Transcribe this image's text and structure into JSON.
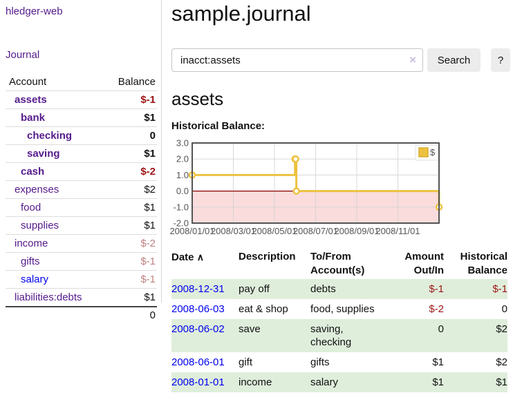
{
  "app": {
    "title": "hledger-web",
    "nav_journal": "Journal"
  },
  "colors": {
    "link_visited_purple": "#551A8B",
    "link_unvisited_blue": "#0000EE",
    "negative_strong_red": "#9D1414",
    "negative_soft_red": "#C08080",
    "row_shade_green": "#dfeedb",
    "series_yellow": "#EDC240",
    "zero_line_dark_red": "#8B0000",
    "negative_region_pink": "#FADCDC"
  },
  "sidebar": {
    "header": {
      "account": "Account",
      "balance": "Balance"
    },
    "rows": [
      {
        "account": "assets",
        "balance": "$-1",
        "level": 1,
        "bold": true,
        "balance_tone": "neg-strong"
      },
      {
        "account": "bank",
        "balance": "$1",
        "level": 2,
        "bold": true,
        "balance_tone": "pos"
      },
      {
        "account": "checking",
        "balance": "0",
        "level": 3,
        "bold": true,
        "balance_tone": "pos"
      },
      {
        "account": "saving",
        "balance": "$1",
        "level": 3,
        "bold": true,
        "balance_tone": "pos"
      },
      {
        "account": "cash",
        "balance": "$-2",
        "level": 2,
        "bold": true,
        "balance_tone": "neg-strong"
      },
      {
        "account": "expenses",
        "balance": "$2",
        "level": 1,
        "bold": false,
        "balance_tone": "pos"
      },
      {
        "account": "food",
        "balance": "$1",
        "level": 2,
        "bold": false,
        "balance_tone": "pos"
      },
      {
        "account": "supplies",
        "balance": "$1",
        "level": 2,
        "bold": false,
        "balance_tone": "pos"
      },
      {
        "account": "income",
        "balance": "$-2",
        "level": 1,
        "bold": false,
        "balance_tone": "neg-soft"
      },
      {
        "account": "gifts",
        "balance": "$-1",
        "level": 2,
        "bold": false,
        "balance_tone": "neg-soft"
      },
      {
        "account": "salary",
        "balance": "$-1",
        "level": 2,
        "bold": false,
        "balance_tone": "neg-soft",
        "unvisited": true
      },
      {
        "account": "liabilities:debts",
        "balance": "$1",
        "level": 1,
        "bold": false,
        "balance_tone": "pos"
      }
    ],
    "total": "0"
  },
  "main": {
    "title": "sample.journal",
    "search": {
      "value": "inacct:assets",
      "clear_icon": "×",
      "button": "Search",
      "help_button": "?"
    },
    "account_heading": "assets",
    "chart_heading": "Historical Balance:"
  },
  "chart_data": {
    "type": "line",
    "title": "Historical Balance:",
    "step": true,
    "series": [
      {
        "name": "$",
        "color": "#EDC240",
        "points": [
          [
            "2008-01-01",
            1
          ],
          [
            "2008-06-01",
            2
          ],
          [
            "2008-06-02",
            2
          ],
          [
            "2008-06-03",
            0
          ],
          [
            "2008-12-31",
            -1
          ]
        ]
      }
    ],
    "xlim": [
      "2008-01-01",
      "2008-12-31"
    ],
    "ylim": [
      -2,
      3
    ],
    "x_ticks": [
      "2008/01/01",
      "2008/03/01",
      "2008/05/01",
      "2008/07/01",
      "2008/09/01",
      "2008/11/01"
    ],
    "y_ticks": [
      3.0,
      2.0,
      1.0,
      0.0,
      -1.0,
      -2.0
    ],
    "grid": true,
    "legend": {
      "label": "$",
      "position": "top-right"
    },
    "zero_line_color": "#8B0000",
    "negative_region_color": "#FADCDC"
  },
  "register_table": {
    "headers": {
      "date": "Date",
      "sort_icon": "∧",
      "description": "Description",
      "accounts": "To/From Account(s)",
      "amount": "Amount Out/In",
      "balance": "Historical Balance"
    },
    "rows": [
      {
        "date": "2008-12-31",
        "description": "pay off",
        "accounts": "debts",
        "amount": "$-1",
        "amount_tone": "neg",
        "balance": "$-1",
        "balance_tone": "neg",
        "shaded": true
      },
      {
        "date": "2008-06-03",
        "description": "eat & shop",
        "accounts": "food, supplies",
        "amount": "$-2",
        "amount_tone": "neg",
        "balance": "0",
        "balance_tone": "pos",
        "shaded": false
      },
      {
        "date": "2008-06-02",
        "description": "save",
        "accounts": "saving, checking",
        "amount": "0",
        "amount_tone": "pos",
        "balance": "$2",
        "balance_tone": "pos",
        "shaded": true
      },
      {
        "date": "2008-06-01",
        "description": "gift",
        "accounts": "gifts",
        "amount": "$1",
        "amount_tone": "pos",
        "balance": "$2",
        "balance_tone": "pos",
        "shaded": false
      },
      {
        "date": "2008-01-01",
        "description": "income",
        "accounts": "salary",
        "amount": "$1",
        "amount_tone": "pos",
        "balance": "$1",
        "balance_tone": "pos",
        "shaded": true
      }
    ]
  }
}
